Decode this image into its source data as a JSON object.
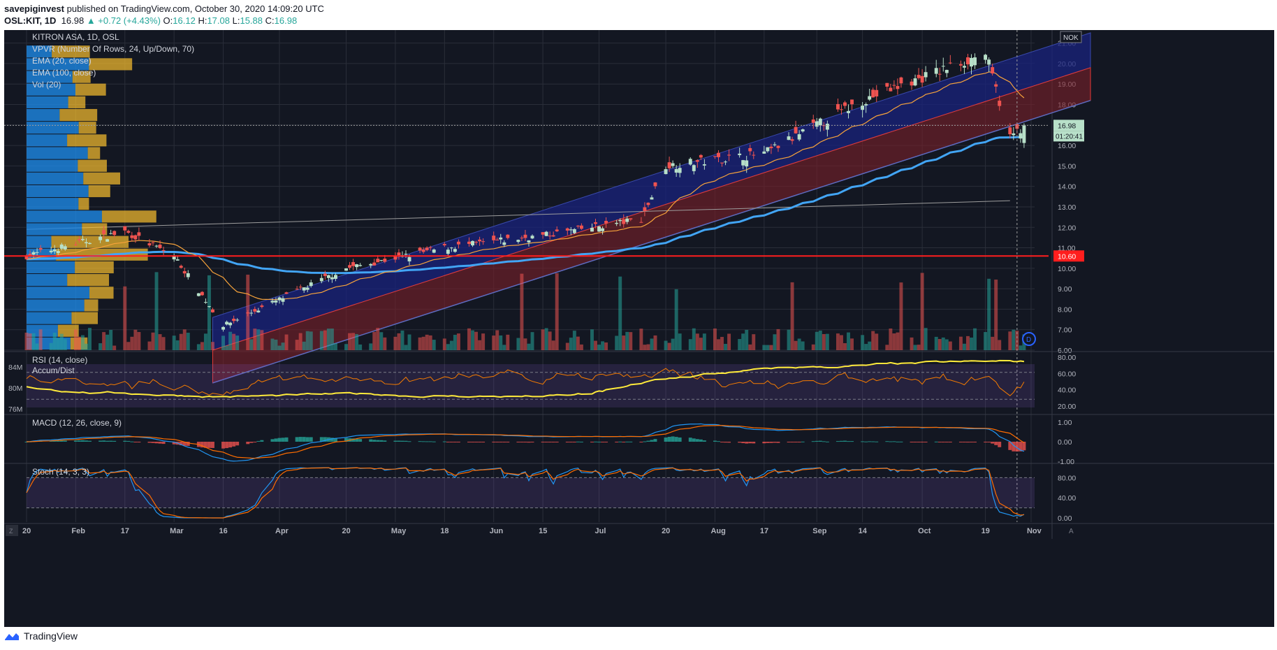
{
  "header": {
    "publisher": "savepiginvest",
    "published_text": " published on TradingView.com, October 30, 2020 14:09:20 UTC",
    "symbol": "OSL:KIT, 1D",
    "last": "16.98",
    "change": "▲ +0.72 (+4.43%)",
    "o_label": "O:",
    "o": "16.12",
    "h_label": "H:",
    "h": "17.08",
    "l_label": "L:",
    "l": "15.88",
    "c_label": "C:",
    "c": "16.98"
  },
  "legend": {
    "title": "KITRON ASA, 1D, OSL",
    "items": [
      "VPVR (Number Of Rows, 24, Up/Down, 70)",
      "EMA (20, close)",
      "EMA (100, close)",
      "Vol (20)"
    ]
  },
  "currency": "NOK",
  "price_tag": "16.98",
  "countdown": "01:20:41",
  "hline_label": "10.60",
  "footer": {
    "brand": "TradingView"
  },
  "colors": {
    "background": "#131722",
    "up": "#b8e0c9",
    "down": "#ef5350",
    "ema20": "#f7a33b",
    "ema100": "#42a5f5",
    "channel_upper": "#1a237e",
    "channel_lower": "#7b1f2a",
    "hline": "#ff1e1e",
    "rsi": "#ffeb3b",
    "accum": "#f57c00",
    "macd": "#2196f3",
    "signal": "#ff6d00",
    "stoch_k": "#2196f3",
    "stoch_d": "#ff6d00"
  },
  "chart_data": [
    {
      "type": "candlestick",
      "title": "KITRON ASA, 1D, OSL",
      "ylim": [
        6,
        21.5
      ],
      "y_ticks": [
        "6.00",
        "7.00",
        "8.00",
        "9.00",
        "10.00",
        "11.00",
        "12.00",
        "13.00",
        "14.00",
        "15.00",
        "16.00",
        "17.00",
        "18.00",
        "19.00",
        "20.00",
        "21.00"
      ],
      "x_ticks": [
        "20",
        "Feb",
        "17",
        "Mar",
        "16",
        "Apr",
        "20",
        "May",
        "18",
        "Jun",
        "15",
        "Jul",
        "20",
        "Aug",
        "17",
        "Sep",
        "14",
        "Oct",
        "19",
        "Nov"
      ],
      "x_range": [
        "2020-01-20",
        "2020-11-02"
      ],
      "hline": 10.6,
      "key_prices": [
        {
          "date": "2020-01-20",
          "close": 10.6
        },
        {
          "date": "2020-02-17",
          "close": 11.8
        },
        {
          "date": "2020-03-02",
          "close": 10.6
        },
        {
          "date": "2020-03-16",
          "close": 7.2
        },
        {
          "date": "2020-04-20",
          "close": 10.0
        },
        {
          "date": "2020-05-18",
          "close": 11.0
        },
        {
          "date": "2020-06-15",
          "close": 11.6
        },
        {
          "date": "2020-07-13",
          "close": 12.4
        },
        {
          "date": "2020-07-20",
          "close": 15.0
        },
        {
          "date": "2020-08-17",
          "close": 15.6
        },
        {
          "date": "2020-09-14",
          "close": 18.2
        },
        {
          "date": "2020-10-19",
          "close": 20.5
        },
        {
          "date": "2020-10-26",
          "close": 16.4
        },
        {
          "date": "2020-10-30",
          "close": 16.98
        }
      ]
    },
    {
      "type": "line",
      "title": "RSI (14, close)",
      "y_ticks": [
        "20.00",
        "40.00",
        "60.00",
        "80.00"
      ],
      "left_ticks": [
        "84M",
        "80M",
        "76M"
      ],
      "series": [
        {
          "name": "RSI (14, close)"
        },
        {
          "name": "Accum/Dist"
        }
      ]
    },
    {
      "type": "line",
      "title": "MACD (12, 26, close, 9)",
      "y_ticks": [
        "-1.00",
        "0.00",
        "1.00"
      ]
    },
    {
      "type": "line",
      "title": "Stoch (14, 3, 3)",
      "y_ticks": [
        "0.00",
        "40.00",
        "80.00"
      ]
    }
  ]
}
